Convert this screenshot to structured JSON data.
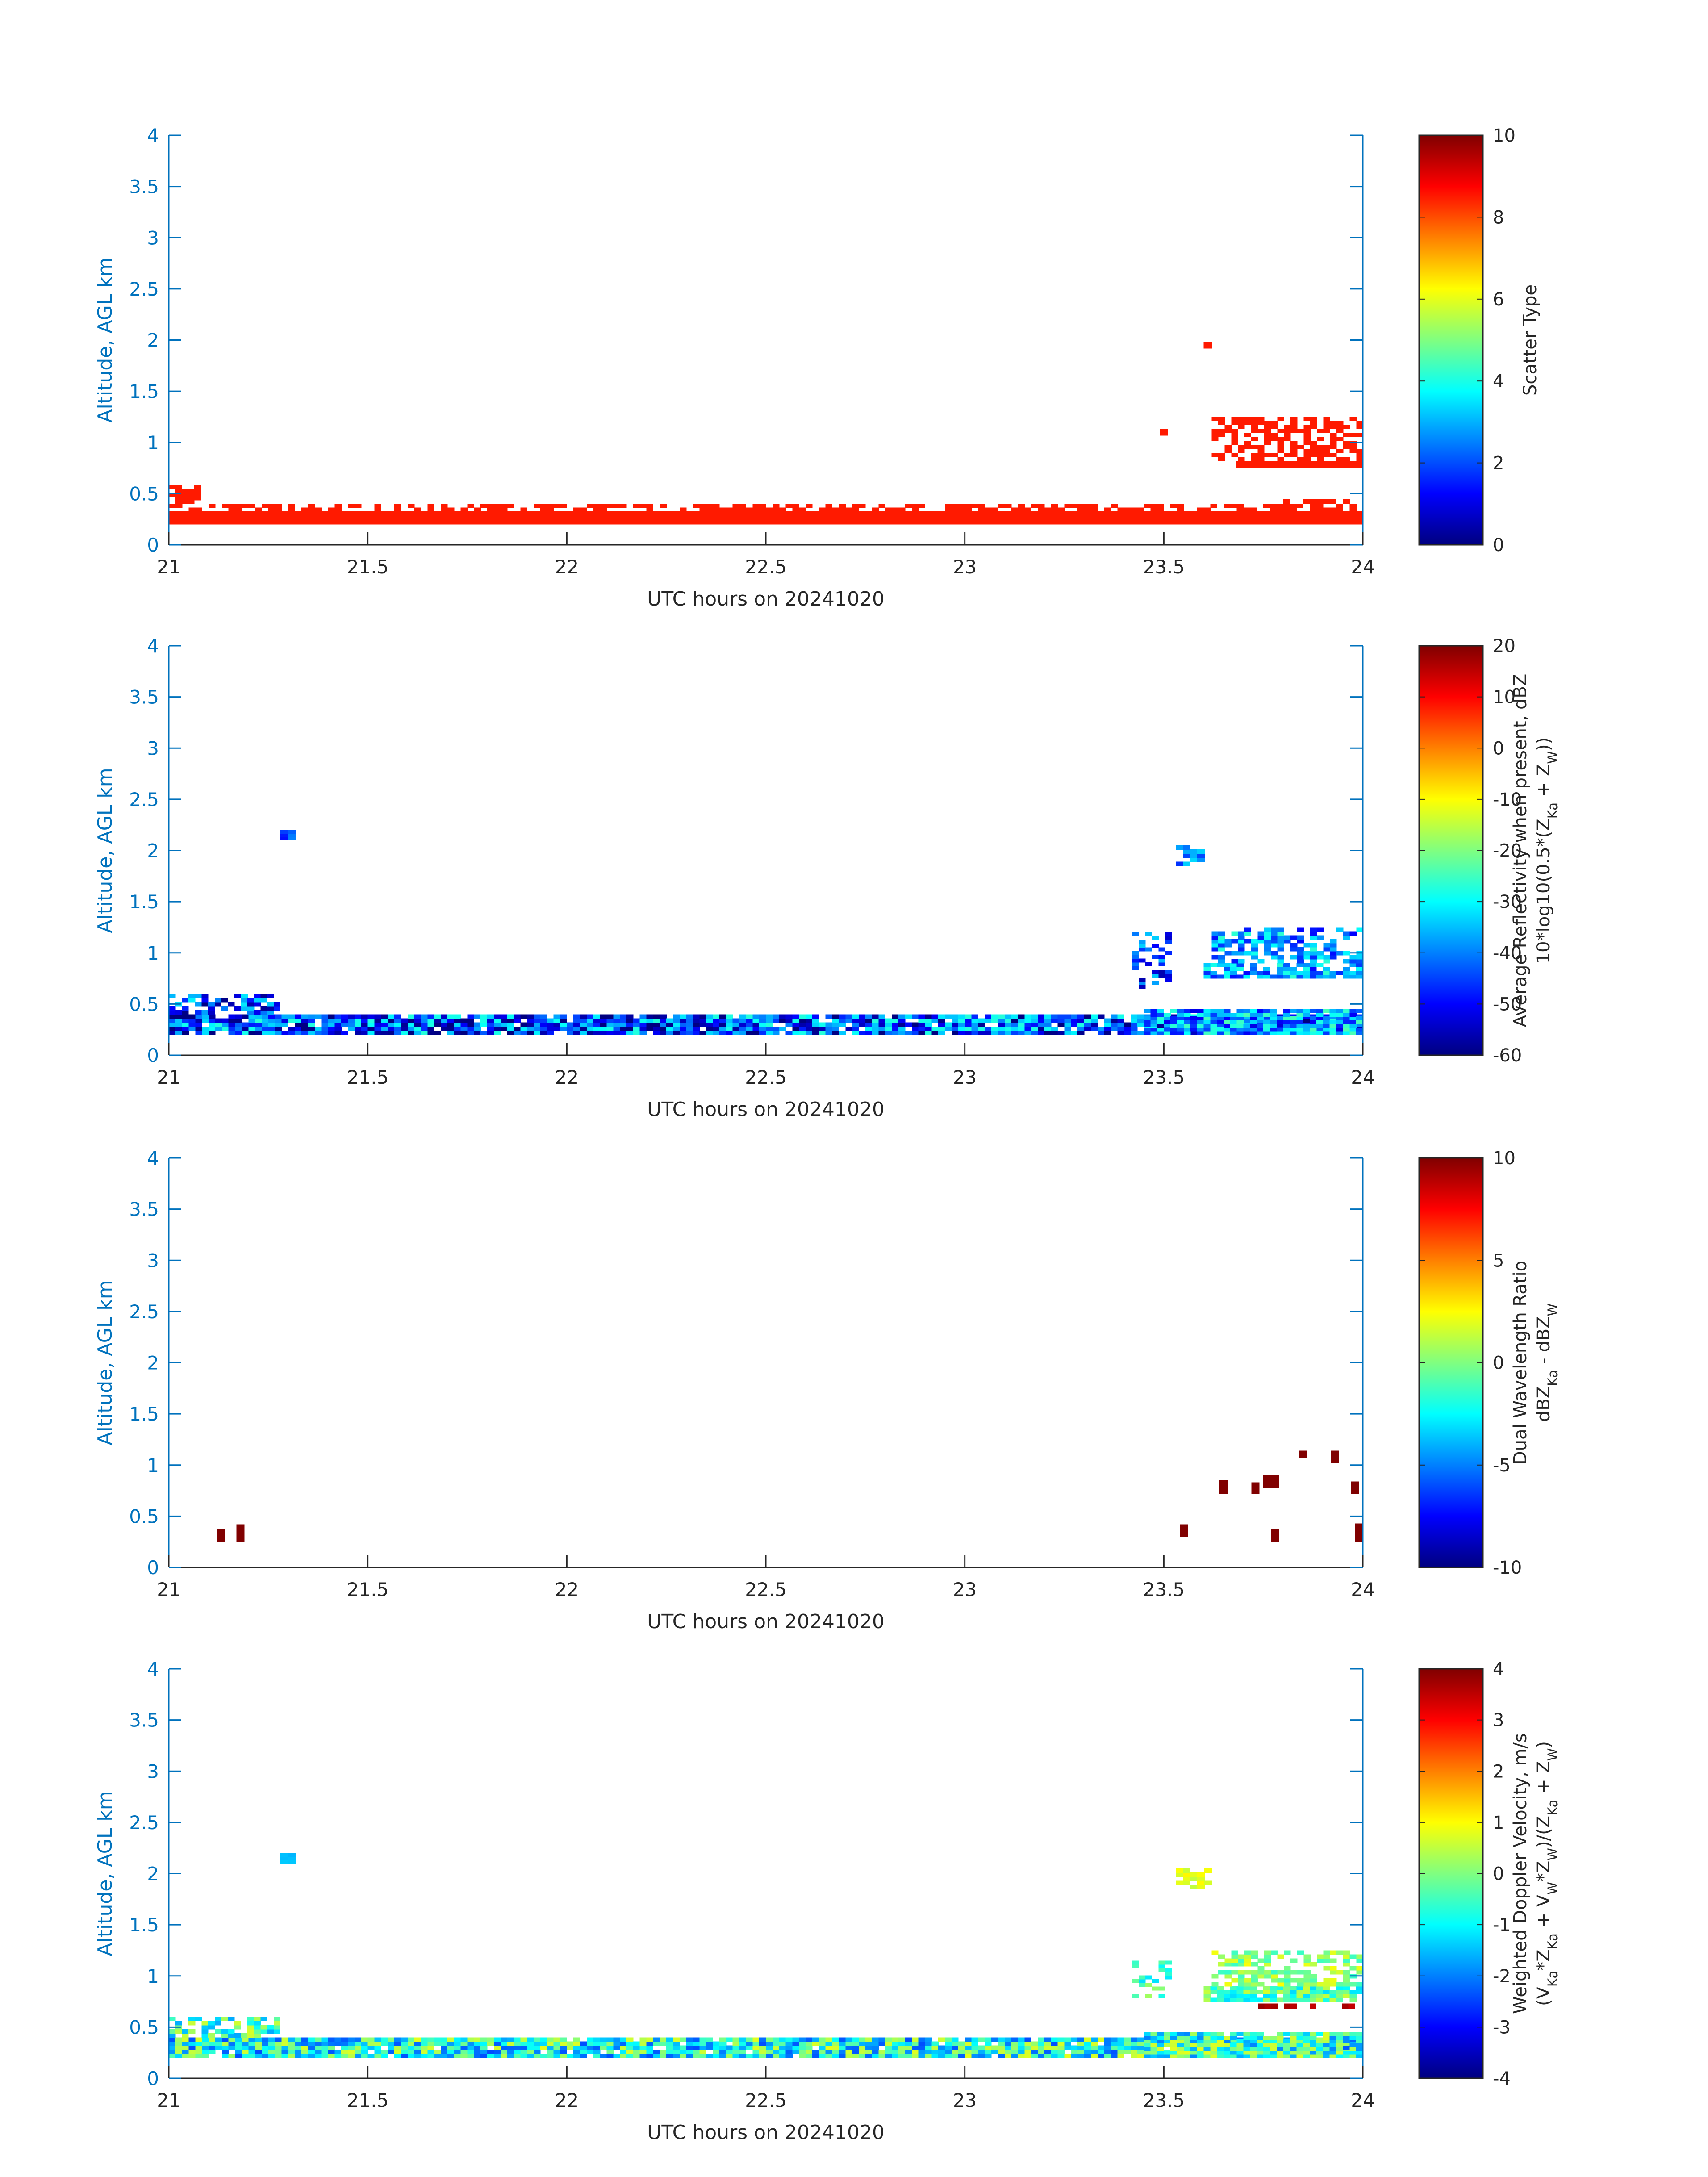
{
  "chart_data": [
    {
      "type": "heatmap",
      "xlabel": "UTC hours on 20241020",
      "ylabel": "Altitude, AGL km",
      "xlim": [
        21,
        24
      ],
      "ylim": [
        0,
        4
      ],
      "xticks": [
        "21",
        "21.5",
        "22",
        "22.5",
        "23",
        "23.5",
        "24"
      ],
      "yticks": [
        "0",
        "0.5",
        "1",
        "1.5",
        "2",
        "2.5",
        "3",
        "3.5",
        "4"
      ],
      "colormap": "jet",
      "colorbar": {
        "label_lines": [
          "Scatter Type"
        ],
        "clim": [
          0,
          10
        ],
        "ticks": [
          "0",
          "2",
          "4",
          "6",
          "8",
          "10"
        ]
      },
      "regions": [
        {
          "x": [
            21.0,
            24.0
          ],
          "y": [
            0.2,
            0.33
          ],
          "value": 8.5,
          "fill": 1.0
        },
        {
          "x": [
            21.0,
            24.0
          ],
          "y": [
            0.33,
            0.4
          ],
          "value": 8.5,
          "fill": 0.55
        },
        {
          "x": [
            21.0,
            21.08
          ],
          "y": [
            0.4,
            0.58
          ],
          "value": 8.5,
          "fill": 0.8
        },
        {
          "x": [
            23.8,
            24.0
          ],
          "y": [
            0.4,
            0.45
          ],
          "value": 8.5,
          "fill": 0.7
        },
        {
          "x": [
            23.68,
            24.0
          ],
          "y": [
            0.75,
            0.82
          ],
          "value": 8.5,
          "fill": 1.0
        },
        {
          "x": [
            23.62,
            24.0
          ],
          "y": [
            0.82,
            1.25
          ],
          "value": 8.5,
          "fill": 0.55
        },
        {
          "x": [
            23.49,
            23.51
          ],
          "y": [
            1.07,
            1.13
          ],
          "value": 8.5,
          "fill": 1.0
        },
        {
          "x": [
            23.6,
            23.62
          ],
          "y": [
            1.92,
            1.98
          ],
          "value": 8.5,
          "fill": 1.0
        }
      ]
    },
    {
      "type": "heatmap",
      "xlabel": "UTC hours on 20241020",
      "ylabel": "Altitude, AGL km",
      "xlim": [
        21,
        24
      ],
      "ylim": [
        0,
        4
      ],
      "xticks": [
        "21",
        "21.5",
        "22",
        "22.5",
        "23",
        "23.5",
        "24"
      ],
      "yticks": [
        "0",
        "0.5",
        "1",
        "1.5",
        "2",
        "2.5",
        "3",
        "3.5",
        "4"
      ],
      "colormap": "jet",
      "colorbar": {
        "label_lines": [
          "Average Reflectivity when present, dBZ",
          "10*log10(0.5*(Z_Ka + Z_W))"
        ],
        "clim": [
          -60,
          20
        ],
        "ticks": [
          "-60",
          "-50",
          "-40",
          "-30",
          "-20",
          "-10",
          "0",
          "10",
          "20"
        ]
      },
      "regions": [
        {
          "x": [
            21.0,
            24.0
          ],
          "y": [
            0.2,
            0.4
          ],
          "value": -45,
          "spread": 18,
          "fill": 0.9
        },
        {
          "x": [
            21.0,
            21.28
          ],
          "y": [
            0.4,
            0.6
          ],
          "value": -45,
          "spread": 15,
          "fill": 0.55
        },
        {
          "x": [
            23.45,
            24.0
          ],
          "y": [
            0.2,
            0.45
          ],
          "value": -38,
          "spread": 14,
          "fill": 0.9
        },
        {
          "x": [
            23.6,
            24.0
          ],
          "y": [
            0.75,
            0.9
          ],
          "value": -38,
          "spread": 12,
          "fill": 0.8
        },
        {
          "x": [
            23.62,
            24.0
          ],
          "y": [
            0.9,
            1.25
          ],
          "value": -38,
          "spread": 12,
          "fill": 0.55
        },
        {
          "x": [
            23.42,
            23.52
          ],
          "y": [
            0.65,
            1.2
          ],
          "value": -45,
          "spread": 12,
          "fill": 0.3
        },
        {
          "x": [
            21.28,
            21.32
          ],
          "y": [
            2.1,
            2.2
          ],
          "value": -45,
          "spread": 5,
          "fill": 1.0
        },
        {
          "x": [
            23.53,
            23.62
          ],
          "y": [
            1.85,
            2.05
          ],
          "value": -40,
          "spread": 8,
          "fill": 0.5
        }
      ]
    },
    {
      "type": "heatmap",
      "xlabel": "UTC hours on 20241020",
      "ylabel": "Altitude, AGL km",
      "xlim": [
        21,
        24
      ],
      "ylim": [
        0,
        4
      ],
      "xticks": [
        "21",
        "21.5",
        "22",
        "22.5",
        "23",
        "23.5",
        "24"
      ],
      "yticks": [
        "0",
        "0.5",
        "1",
        "1.5",
        "2",
        "2.5",
        "3",
        "3.5",
        "4"
      ],
      "colormap": "jet",
      "colorbar": {
        "label_lines": [
          "Dual Wavelength Ratio",
          "dBZ_Ka - dBZ_W"
        ],
        "clim": [
          -10,
          10
        ],
        "ticks": [
          "-10",
          "-5",
          "0",
          "5",
          "10"
        ]
      },
      "cells": [
        {
          "x": [
            21.12,
            21.14
          ],
          "y": [
            0.25,
            0.37
          ],
          "value": 10
        },
        {
          "x": [
            21.17,
            21.19
          ],
          "y": [
            0.25,
            0.42
          ],
          "value": 10
        },
        {
          "x": [
            23.54,
            23.56
          ],
          "y": [
            0.3,
            0.42
          ],
          "value": 10
        },
        {
          "x": [
            23.64,
            23.66
          ],
          "y": [
            0.72,
            0.85
          ],
          "value": 10
        },
        {
          "x": [
            23.72,
            23.74
          ],
          "y": [
            0.72,
            0.83
          ],
          "value": 10
        },
        {
          "x": [
            23.75,
            23.79
          ],
          "y": [
            0.78,
            0.9
          ],
          "value": 10
        },
        {
          "x": [
            23.77,
            23.79
          ],
          "y": [
            0.25,
            0.37
          ],
          "value": 10
        },
        {
          "x": [
            23.84,
            23.86
          ],
          "y": [
            1.07,
            1.14
          ],
          "value": 10
        },
        {
          "x": [
            23.92,
            23.94
          ],
          "y": [
            1.02,
            1.14
          ],
          "value": 10
        },
        {
          "x": [
            23.97,
            23.99
          ],
          "y": [
            0.72,
            0.84
          ],
          "value": 10
        },
        {
          "x": [
            23.98,
            24.0
          ],
          "y": [
            0.25,
            0.43
          ],
          "value": 10
        }
      ]
    },
    {
      "type": "heatmap",
      "xlabel": "UTC hours on 20241020",
      "ylabel": "Altitude, AGL km",
      "xlim": [
        21,
        24
      ],
      "ylim": [
        0,
        4
      ],
      "xticks": [
        "21",
        "21.5",
        "22",
        "22.5",
        "23",
        "23.5",
        "24"
      ],
      "yticks": [
        "0",
        "0.5",
        "1",
        "1.5",
        "2",
        "2.5",
        "3",
        "3.5",
        "4"
      ],
      "colormap": "jet",
      "colorbar": {
        "label_lines": [
          "Weighted Doppler Velocity, m/s",
          "(V_Ka*Z_Ka + V_W*Z_W)/(Z_Ka + Z_W)"
        ],
        "clim": [
          -4,
          4
        ],
        "ticks": [
          "-4",
          "-3",
          "-2",
          "-1",
          "0",
          "1",
          "2",
          "3",
          "4"
        ]
      },
      "regions": [
        {
          "x": [
            21.0,
            24.0
          ],
          "y": [
            0.2,
            0.4
          ],
          "value": -0.8,
          "spread": 1.6,
          "fill": 0.95
        },
        {
          "x": [
            21.0,
            21.28
          ],
          "y": [
            0.4,
            0.6
          ],
          "value": -0.5,
          "spread": 1.2,
          "fill": 0.6
        },
        {
          "x": [
            23.45,
            24.0
          ],
          "y": [
            0.2,
            0.45
          ],
          "value": -0.6,
          "spread": 1.4,
          "fill": 0.95
        },
        {
          "x": [
            23.6,
            24.0
          ],
          "y": [
            0.75,
            0.9
          ],
          "value": -0.3,
          "spread": 1.0,
          "fill": 0.85
        },
        {
          "x": [
            23.62,
            24.0
          ],
          "y": [
            0.9,
            1.25
          ],
          "value": 0.2,
          "spread": 0.8,
          "fill": 0.55
        },
        {
          "x": [
            23.42,
            23.52
          ],
          "y": [
            0.75,
            1.15
          ],
          "value": -0.5,
          "spread": 0.8,
          "fill": 0.3
        },
        {
          "x": [
            21.28,
            21.32
          ],
          "y": [
            2.1,
            2.2
          ],
          "value": -1.5,
          "spread": 0.1,
          "fill": 1.0
        },
        {
          "x": [
            23.53,
            23.62
          ],
          "y": [
            1.85,
            2.05
          ],
          "value": 0.8,
          "spread": 0.3,
          "fill": 0.5
        },
        {
          "x": [
            23.72,
            23.98
          ],
          "y": [
            0.68,
            0.73
          ],
          "value": 3.6,
          "spread": 0.2,
          "fill": 0.3
        }
      ]
    }
  ]
}
